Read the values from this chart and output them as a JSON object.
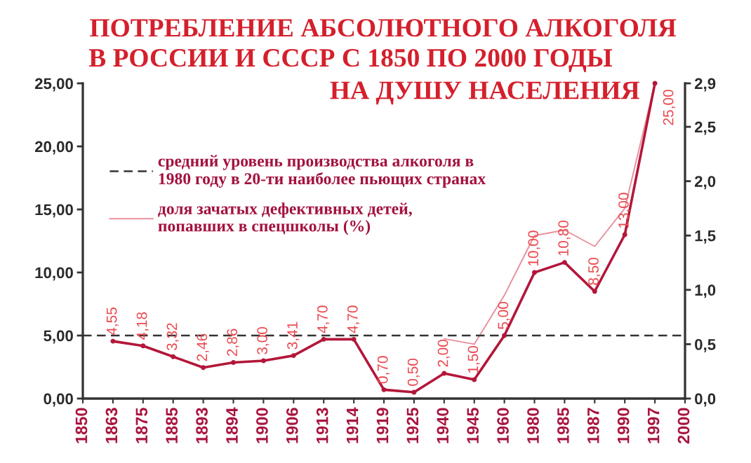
{
  "chart_data": {
    "type": "line",
    "title": "ПОТРЕБЛЕНИЕ АБСОЛЮТНОГО АЛКОГОЛЯ\nВ РОССИИ И СССР С 1850 ПО 2000 ГОДЫ\nНА ДУШУ НАСЕЛЕНИЯ",
    "categories": [
      "1850",
      "1863",
      "1875",
      "1885",
      "1893",
      "1894",
      "1900",
      "1906",
      "1913",
      "1914",
      "1919",
      "1925",
      "1940",
      "1945",
      "1960",
      "1980",
      "1985",
      "1987",
      "1990",
      "1997",
      "2000"
    ],
    "series": [
      {
        "color": "#b3173a",
        "marker": "circle",
        "values": [
          null,
          4.55,
          4.18,
          3.32,
          2.46,
          2.86,
          3.0,
          3.41,
          4.7,
          4.7,
          0.7,
          0.5,
          2.0,
          1.5,
          5.0,
          10.0,
          10.8,
          8.5,
          13.0,
          25.0,
          null
        ],
        "value_labels": [
          null,
          "4,55",
          "4,18",
          "3,32",
          "2,46",
          "2,86",
          "3,00",
          "3,41",
          "4,70",
          "4,70",
          "0,70",
          "0,50",
          "2,00",
          "1,50",
          "5,00",
          "10,00",
          "10,80",
          "8,50",
          "13,00",
          "25,00",
          null
        ]
      },
      {
        "name": "доля зачатых дефективных детей,\nпопавших в спецшколы (%)",
        "color": "#e8909e",
        "axis": "y2",
        "values": [
          null,
          null,
          null,
          null,
          null,
          null,
          null,
          null,
          null,
          null,
          null,
          null,
          0.55,
          0.5,
          0.95,
          1.5,
          1.55,
          1.4,
          1.75,
          2.9,
          null
        ]
      }
    ],
    "ylim": [
      0,
      25
    ],
    "yticks": [
      {
        "value": 0,
        "label": "0,00"
      },
      {
        "value": 5,
        "label": "5,00"
      },
      {
        "value": 10,
        "label": "10,00"
      },
      {
        "value": 15,
        "label": "15,00"
      },
      {
        "value": 20,
        "label": "20,00"
      },
      {
        "value": 25,
        "label": "25,00"
      }
    ],
    "y2lim": [
      0,
      2.9
    ],
    "y2ticks": [
      {
        "value": 0,
        "label": "0,0"
      },
      {
        "value": 0.5,
        "label": "0,5"
      },
      {
        "value": 1,
        "label": "1,0"
      },
      {
        "value": 1.5,
        "label": "1,5"
      },
      {
        "value": 2,
        "label": "2,0"
      },
      {
        "value": 2.5,
        "label": "2,5"
      },
      {
        "value": 2.9,
        "label": "2,9"
      }
    ],
    "ref_lines": [
      {
        "axis": "y",
        "value": 5,
        "label": "средний уровень производства алкоголя в\n1980 году в 20-ти наиболее пьющих странах",
        "color": "#333333",
        "line_style": "dashed"
      }
    ],
    "legend": "top left"
  }
}
